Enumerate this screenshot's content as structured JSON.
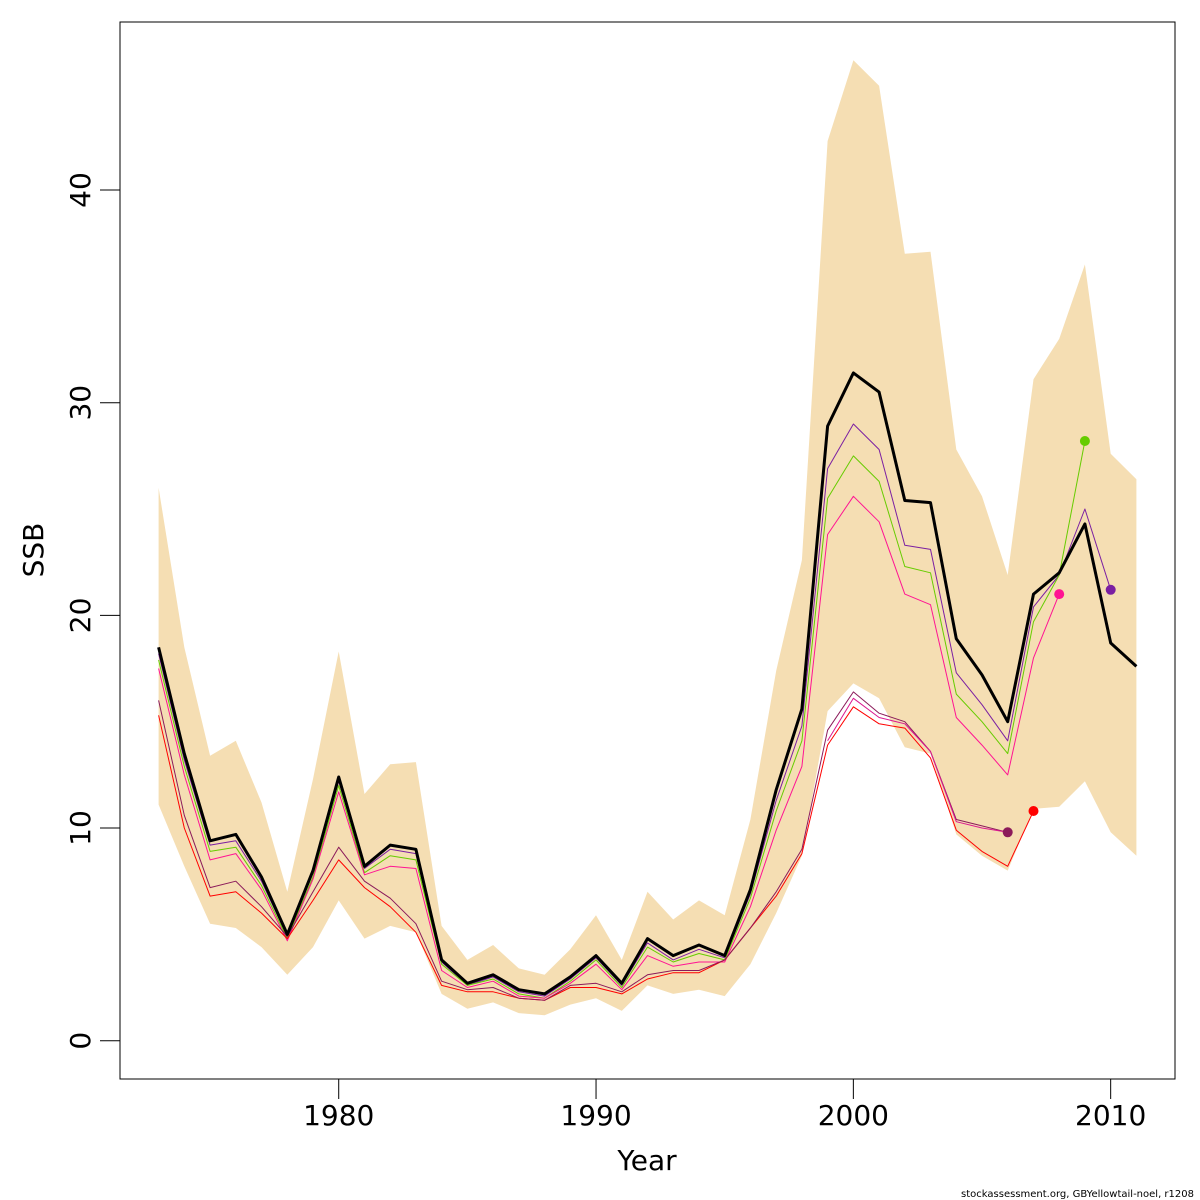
{
  "chart_data": {
    "type": "line",
    "xlabel": "Year",
    "ylabel": "SSB",
    "xlim": [
      1971.5,
      2012.5
    ],
    "ylim": [
      -1.8,
      47.9
    ],
    "x_ticks": [
      1980,
      1990,
      2000,
      2010
    ],
    "y_ticks": [
      0,
      10,
      20,
      30,
      40
    ],
    "grid": false,
    "legend": "none",
    "band": {
      "color": "#F5DEB3",
      "x": [
        1973,
        1974,
        1975,
        1976,
        1977,
        1978,
        1979,
        1980,
        1981,
        1982,
        1983,
        1984,
        1985,
        1986,
        1987,
        1988,
        1989,
        1990,
        1991,
        1992,
        1993,
        1994,
        1995,
        1996,
        1997,
        1998,
        1999,
        2000,
        2001,
        2002,
        2003,
        2004,
        2005,
        2006,
        2007,
        2008,
        2009,
        2010,
        2011
      ],
      "upper": [
        26.0,
        18.5,
        13.4,
        14.1,
        11.2,
        7.0,
        12.3,
        18.3,
        11.6,
        13.0,
        13.1,
        5.4,
        3.8,
        4.5,
        3.4,
        3.1,
        4.3,
        5.9,
        3.8,
        7.0,
        5.7,
        6.6,
        5.9,
        10.4,
        17.4,
        22.6,
        42.3,
        46.1,
        44.9,
        37.0,
        37.1,
        27.8,
        25.6,
        21.9,
        31.1,
        33.0,
        36.5,
        27.6,
        26.4
      ],
      "lower": [
        11.1,
        8.2,
        5.5,
        5.3,
        4.4,
        3.1,
        4.4,
        6.6,
        4.8,
        5.4,
        5.1,
        2.2,
        1.5,
        1.8,
        1.3,
        1.2,
        1.7,
        2.0,
        1.4,
        2.6,
        2.2,
        2.4,
        2.1,
        3.6,
        6.0,
        8.7,
        15.5,
        16.8,
        16.1,
        13.8,
        13.5,
        9.7,
        8.7,
        8.0,
        10.9,
        11.0,
        12.2,
        9.8,
        8.7
      ]
    },
    "series": [
      {
        "color": "#000000",
        "x": [
          1973,
          1974,
          1975,
          1976,
          1977,
          1978,
          1979,
          1980,
          1981,
          1982,
          1983,
          1984,
          1985,
          1986,
          1987,
          1988,
          1989,
          1990,
          1991,
          1992,
          1993,
          1994,
          1995,
          1996,
          1997,
          1998,
          1999,
          2000,
          2001,
          2002,
          2003,
          2004,
          2005,
          2006,
          2007,
          2008,
          2009,
          2010,
          2011
        ],
        "y": [
          18.5,
          13.5,
          9.4,
          9.7,
          7.7,
          5.0,
          8.0,
          12.4,
          8.2,
          9.2,
          9.0,
          3.8,
          2.7,
          3.1,
          2.4,
          2.2,
          3.0,
          4.0,
          2.7,
          4.8,
          4.0,
          4.5,
          4.0,
          7.1,
          11.8,
          15.6,
          28.9,
          31.4,
          30.5,
          25.4,
          25.3,
          18.9,
          17.2,
          15.0,
          21.0,
          22.0,
          24.3,
          18.7,
          17.6
        ],
        "end_point": false,
        "width": 3
      },
      {
        "color": "#7B1FA2",
        "x": [
          1973,
          1974,
          1975,
          1976,
          1977,
          1978,
          1979,
          1980,
          1981,
          1982,
          1983,
          1984,
          1985,
          1986,
          1987,
          1988,
          1989,
          1990,
          1991,
          1992,
          1993,
          1994,
          1995,
          1996,
          1997,
          1998,
          1999,
          2000,
          2001,
          2002,
          2003,
          2004,
          2005,
          2006,
          2007,
          2008,
          2009,
          2010
        ],
        "y": [
          18.2,
          13.2,
          9.2,
          9.4,
          7.5,
          4.9,
          7.9,
          12.2,
          8.1,
          9.0,
          8.8,
          3.7,
          2.6,
          3.0,
          2.3,
          2.1,
          2.9,
          3.9,
          2.6,
          4.6,
          3.8,
          4.3,
          3.9,
          6.9,
          11.3,
          14.8,
          26.9,
          29.0,
          27.8,
          23.3,
          23.1,
          17.3,
          15.8,
          14.1,
          20.4,
          21.9,
          25.0,
          21.2
        ],
        "end_point": true,
        "width": 1
      },
      {
        "color": "#66CC00",
        "x": [
          1973,
          1974,
          1975,
          1976,
          1977,
          1978,
          1979,
          1980,
          1981,
          1982,
          1983,
          1984,
          1985,
          1986,
          1987,
          1988,
          1989,
          1990,
          1991,
          1992,
          1993,
          1994,
          1995,
          1996,
          1997,
          1998,
          1999,
          2000,
          2001,
          2002,
          2003,
          2004,
          2005,
          2006,
          2007,
          2008,
          2009
        ],
        "y": [
          17.9,
          12.9,
          8.9,
          9.1,
          7.3,
          4.8,
          7.7,
          12.0,
          7.9,
          8.7,
          8.5,
          3.6,
          2.6,
          2.9,
          2.2,
          2.0,
          2.8,
          3.8,
          2.5,
          4.4,
          3.7,
          4.1,
          3.8,
          6.7,
          10.8,
          14.1,
          25.5,
          27.5,
          26.3,
          22.3,
          22.0,
          16.3,
          15.0,
          13.5,
          19.7,
          21.9,
          28.2
        ],
        "end_point": true,
        "width": 1
      },
      {
        "color": "#FF1493",
        "x": [
          1973,
          1974,
          1975,
          1976,
          1977,
          1978,
          1979,
          1980,
          1981,
          1982,
          1983,
          1984,
          1985,
          1986,
          1987,
          1988,
          1989,
          1990,
          1991,
          1992,
          1993,
          1994,
          1995,
          1996,
          1997,
          1998,
          1999,
          2000,
          2001,
          2002,
          2003,
          2004,
          2005,
          2006,
          2007,
          2008
        ],
        "y": [
          17.5,
          12.5,
          8.5,
          8.8,
          7.1,
          4.7,
          7.6,
          11.7,
          7.8,
          8.2,
          8.1,
          3.3,
          2.5,
          2.8,
          2.1,
          2.0,
          2.7,
          3.6,
          2.4,
          4.0,
          3.5,
          3.7,
          3.7,
          6.3,
          9.9,
          12.9,
          23.8,
          25.6,
          24.4,
          21.0,
          20.5,
          15.2,
          13.9,
          12.5,
          18.0,
          21.0
        ],
        "end_point": true,
        "width": 1
      },
      {
        "color": "#FF0000",
        "x": [
          1973,
          1974,
          1975,
          1976,
          1977,
          1978,
          1979,
          1980,
          1981,
          1982,
          1983,
          1984,
          1985,
          1986,
          1987,
          1988,
          1989,
          1990,
          1991,
          1992,
          1993,
          1994,
          1995,
          1996,
          1997,
          1998,
          1999,
          2000,
          2001,
          2002,
          2003,
          2004,
          2005,
          2006,
          2007
        ],
        "y": [
          15.3,
          10.0,
          6.8,
          7.0,
          6.0,
          4.8,
          6.6,
          8.5,
          7.2,
          6.3,
          5.1,
          2.6,
          2.3,
          2.3,
          2.0,
          1.9,
          2.5,
          2.5,
          2.2,
          2.9,
          3.2,
          3.2,
          3.8,
          5.3,
          6.8,
          8.8,
          13.9,
          15.7,
          14.9,
          14.7,
          13.3,
          9.9,
          8.9,
          8.2,
          10.8
        ],
        "end_point": true,
        "width": 1
      },
      {
        "color": "#8B1A5A",
        "x": [
          1973,
          1974,
          1975,
          1976,
          1977,
          1978,
          1979,
          1980,
          1981,
          1982,
          1983,
          1984,
          1985,
          1986,
          1987,
          1988,
          1989,
          1990,
          1991,
          1992,
          1993,
          1994,
          1995,
          1996,
          1997,
          1998,
          1999,
          2000,
          2001,
          2002,
          2003,
          2004,
          2005,
          2006
        ],
        "y": [
          16.0,
          10.6,
          7.2,
          7.5,
          6.3,
          4.9,
          7.0,
          9.1,
          7.5,
          6.7,
          5.5,
          2.8,
          2.4,
          2.5,
          2.0,
          1.9,
          2.6,
          2.7,
          2.3,
          3.1,
          3.3,
          3.3,
          3.8,
          5.3,
          7.0,
          9.0,
          14.6,
          16.4,
          15.4,
          15.0,
          13.6,
          10.4,
          10.1,
          9.8
        ],
        "end_point": true,
        "width": 1
      },
      {
        "color": "#DA1890",
        "x": [
          1999,
          2000,
          2001,
          2002,
          2003,
          2004,
          2005,
          2006
        ],
        "y": [
          14.1,
          16.1,
          15.2,
          14.9,
          13.6,
          10.3,
          10.0,
          9.8
        ],
        "end_point": false,
        "width": 1
      }
    ]
  },
  "footer": {
    "credit": "stockassessment.org, GBYellowtail-noel, r1208"
  }
}
